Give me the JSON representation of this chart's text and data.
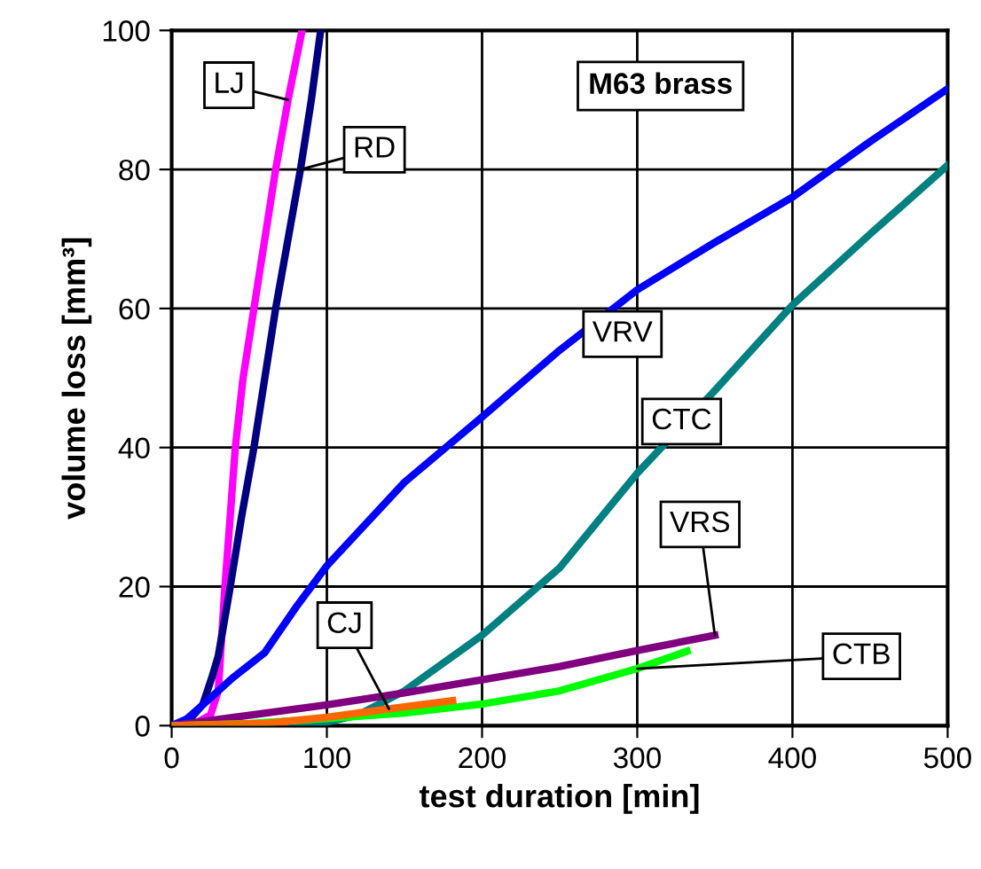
{
  "chart_data": {
    "type": "line",
    "xlabel": "test duration [min]",
    "ylabel": "volume loss [mm³]",
    "annotations": [
      "M63 brass"
    ],
    "xlim": [
      0,
      500
    ],
    "xticks": [
      0,
      100,
      200,
      300,
      400,
      500
    ],
    "ylim": [
      0,
      100
    ],
    "yticks": [
      0,
      20,
      40,
      60,
      80,
      100
    ],
    "grid": true,
    "line_style": "solid",
    "series": [
      {
        "name": "LJ",
        "color": "#ff00ff",
        "x": [
          0,
          15,
          25,
          30,
          34,
          41,
          46,
          53,
          60,
          67,
          75,
          84
        ],
        "values": [
          0,
          0.3,
          1.5,
          5,
          19,
          40,
          50,
          60,
          70,
          80,
          90,
          100
        ]
      },
      {
        "name": "RD",
        "color": "#000080",
        "x": [
          0,
          10,
          20,
          26,
          30,
          37,
          45,
          53,
          60,
          67,
          75,
          83,
          90,
          96
        ],
        "values": [
          0,
          0.5,
          3,
          7,
          10,
          19,
          30,
          40,
          50,
          60,
          70,
          80,
          90,
          100
        ]
      },
      {
        "name": "VRV",
        "color": "#0000ff",
        "x": [
          0,
          10,
          20,
          30,
          40,
          60,
          80,
          100,
          150,
          200,
          250,
          300,
          350,
          400,
          450,
          500
        ],
        "values": [
          0,
          1,
          3,
          5,
          7,
          10.5,
          17,
          23,
          35,
          44.4,
          54,
          62.7,
          69.5,
          76,
          84,
          91.6
        ]
      },
      {
        "name": "CTC",
        "color": "#008080",
        "x": [
          0,
          30,
          60,
          90,
          120,
          150,
          200,
          250,
          300,
          350,
          400,
          450,
          500
        ],
        "values": [
          0,
          0,
          0,
          0,
          1.5,
          5,
          13,
          22.7,
          36.3,
          48.2,
          60.5,
          70.7,
          80.6
        ]
      },
      {
        "name": "VRS",
        "color": "#800080",
        "x": [
          0,
          50,
          100,
          150,
          200,
          250,
          300,
          350
        ],
        "values": [
          0,
          1.5,
          3,
          4.7,
          6.6,
          8.5,
          10.8,
          13
        ]
      },
      {
        "name": "CTB",
        "color": "#00ff00",
        "x": [
          0,
          50,
          100,
          150,
          200,
          250,
          300,
          332
        ],
        "values": [
          0,
          0.3,
          1,
          1.8,
          3.1,
          5,
          8.2,
          10.7
        ]
      },
      {
        "name": "CJ",
        "color": "#ff6600",
        "x": [
          0,
          60,
          100,
          140,
          181
        ],
        "values": [
          0,
          0.3,
          1.2,
          2.4,
          3.6
        ]
      }
    ]
  }
}
